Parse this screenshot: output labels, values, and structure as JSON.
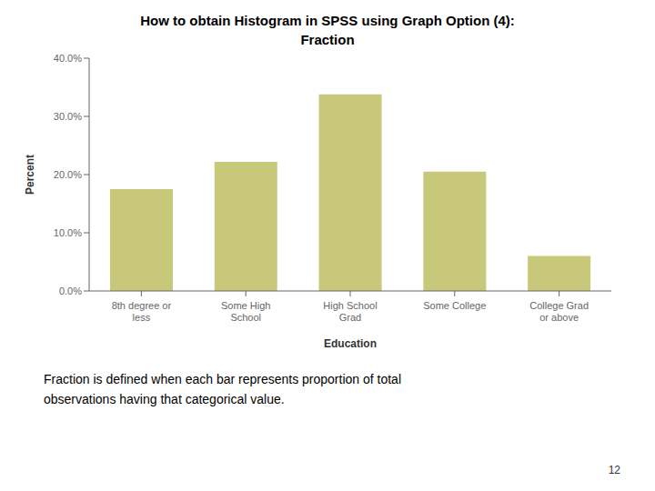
{
  "chart_data": {
    "type": "bar",
    "title": "How to obtain Histogram in SPSS using Graph Option (4):",
    "subtitle": "Fraction",
    "categories": [
      "8th degree or\nless",
      "Some High\nSchool",
      "High School\nGrad",
      "Some College",
      "College Grad\nor above"
    ],
    "values": [
      17.5,
      22.2,
      33.8,
      20.5,
      6.0
    ],
    "color": "#c8c87a",
    "xlabel": "Education",
    "ylabel": "Percent",
    "ylim": [
      0,
      40
    ],
    "yticks": [
      {
        "value": 0,
        "label": "0.0%"
      },
      {
        "value": 10,
        "label": "10.0%"
      },
      {
        "value": 20,
        "label": "20.0%"
      },
      {
        "value": 30,
        "label": "30.0%"
      },
      {
        "value": 40,
        "label": "40.0%"
      }
    ],
    "grid": false,
    "annotations": [
      "Fraction is defined when each bar represents proportion of total",
      "observations having that categorical value.",
      "12"
    ]
  }
}
